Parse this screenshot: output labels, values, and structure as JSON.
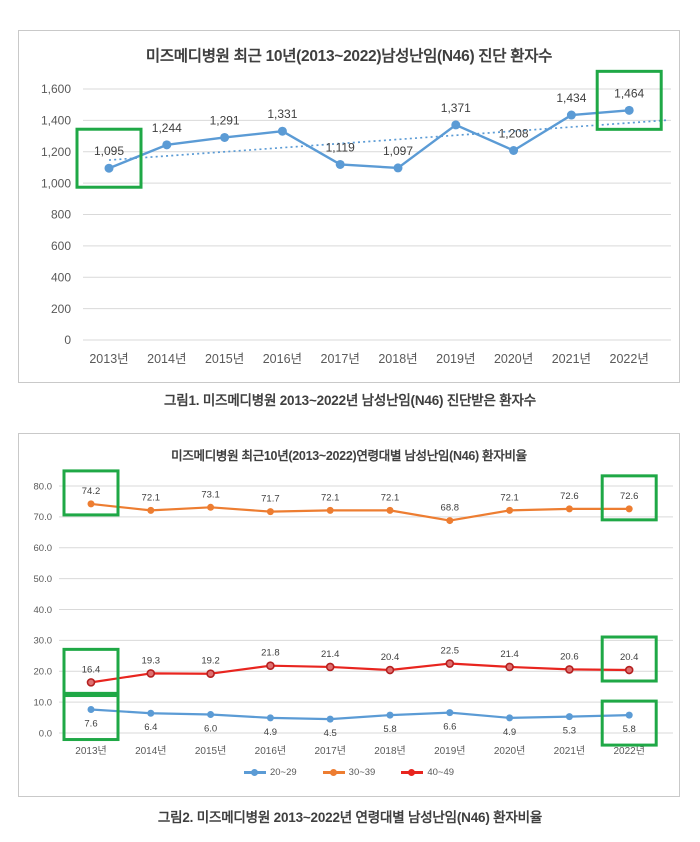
{
  "figure1": {
    "caption": "그림1. 미즈메디병원 2013~2022년 남성난임(N46) 진단받은 환자수"
  },
  "figure2": {
    "caption": "그림2. 미즈메디병원 2013~2022년 연령대별 남성난임(N46) 환자비율"
  },
  "highlight_color": "#1FA846",
  "chart_data": [
    {
      "type": "line",
      "title": "미즈메디병원 최근 10년(2013~2022)남성난임(N46) 진단 환자수",
      "categories": [
        "2013년",
        "2014년",
        "2015년",
        "2016년",
        "2017년",
        "2018년",
        "2019년",
        "2020년",
        "2021년",
        "2022년"
      ],
      "series": [
        {
          "name": "진단 환자수",
          "color": "#5B9BD5",
          "values": [
            1095,
            1244,
            1291,
            1331,
            1119,
            1097,
            1371,
            1208,
            1434,
            1464
          ],
          "labels": [
            "1,095",
            "1,244",
            "1,291",
            "1,331",
            "1,119",
            "1,097",
            "1,371",
            "1,208",
            "1,434",
            "1,464"
          ],
          "label_position": "above"
        }
      ],
      "trendline": {
        "style": "dotted",
        "color": "#5B9BD5",
        "start": 1147,
        "end": 1384
      },
      "ylim": [
        0,
        1600
      ],
      "ytick_step": 200,
      "yticks": [
        "0",
        "200",
        "400",
        "600",
        "800",
        "1,000",
        "1,200",
        "1,400",
        "1,600"
      ],
      "grid": true,
      "legend_position": "none",
      "highlights": [
        {
          "series": 0,
          "index": 0
        },
        {
          "series": 0,
          "index": 9
        }
      ]
    },
    {
      "type": "line",
      "title": "미즈메디병원 최근10년(2013~2022)연령대별 남성난임(N46) 환자비율",
      "categories": [
        "2013년",
        "2014년",
        "2015년",
        "2016년",
        "2017년",
        "2018년",
        "2019년",
        "2020년",
        "2021년",
        "2022년"
      ],
      "series": [
        {
          "name": "20~29",
          "color": "#5B9BD5",
          "values": [
            7.6,
            6.4,
            6.0,
            4.9,
            4.5,
            5.8,
            6.6,
            4.9,
            5.3,
            5.8
          ],
          "labels": [
            "7.6",
            "6.4",
            "6.0",
            "4.9",
            "4.5",
            "5.8",
            "6.6",
            "4.9",
            "5.3",
            "5.8"
          ],
          "label_position": "below"
        },
        {
          "name": "30~39",
          "color": "#ED7D31",
          "values": [
            74.2,
            72.1,
            73.1,
            71.7,
            72.1,
            72.1,
            68.8,
            72.1,
            72.6,
            72.6
          ],
          "labels": [
            "74.2",
            "72.1",
            "73.1",
            "71.7",
            "72.1",
            "72.1",
            "68.8",
            "72.1",
            "72.6",
            "72.6"
          ],
          "label_position": "above"
        },
        {
          "name": "40~49",
          "color": "#E8251F",
          "values": [
            16.4,
            19.3,
            19.2,
            21.8,
            21.4,
            20.4,
            22.5,
            21.4,
            20.6,
            20.4
          ],
          "labels": [
            "16.4",
            "19.3",
            "19.2",
            "21.8",
            "21.4",
            "20.4",
            "22.5",
            "21.4",
            "20.6",
            "20.4"
          ],
          "label_position": "above",
          "marker_fill": "#DF7070",
          "marker_stroke": "#B42020"
        }
      ],
      "ylim": [
        0,
        80
      ],
      "ytick_step": 10,
      "yticks": [
        "0.0",
        "10.0",
        "20.0",
        "30.0",
        "40.0",
        "50.0",
        "60.0",
        "70.0",
        "80.0"
      ],
      "grid": true,
      "legend_position": "bottom",
      "highlights": [
        {
          "series": 1,
          "index": 0
        },
        {
          "series": 2,
          "index": 0
        },
        {
          "series": 0,
          "index": 0
        },
        {
          "series": 1,
          "index": 9
        },
        {
          "series": 2,
          "index": 9
        },
        {
          "series": 0,
          "index": 9
        }
      ]
    }
  ]
}
